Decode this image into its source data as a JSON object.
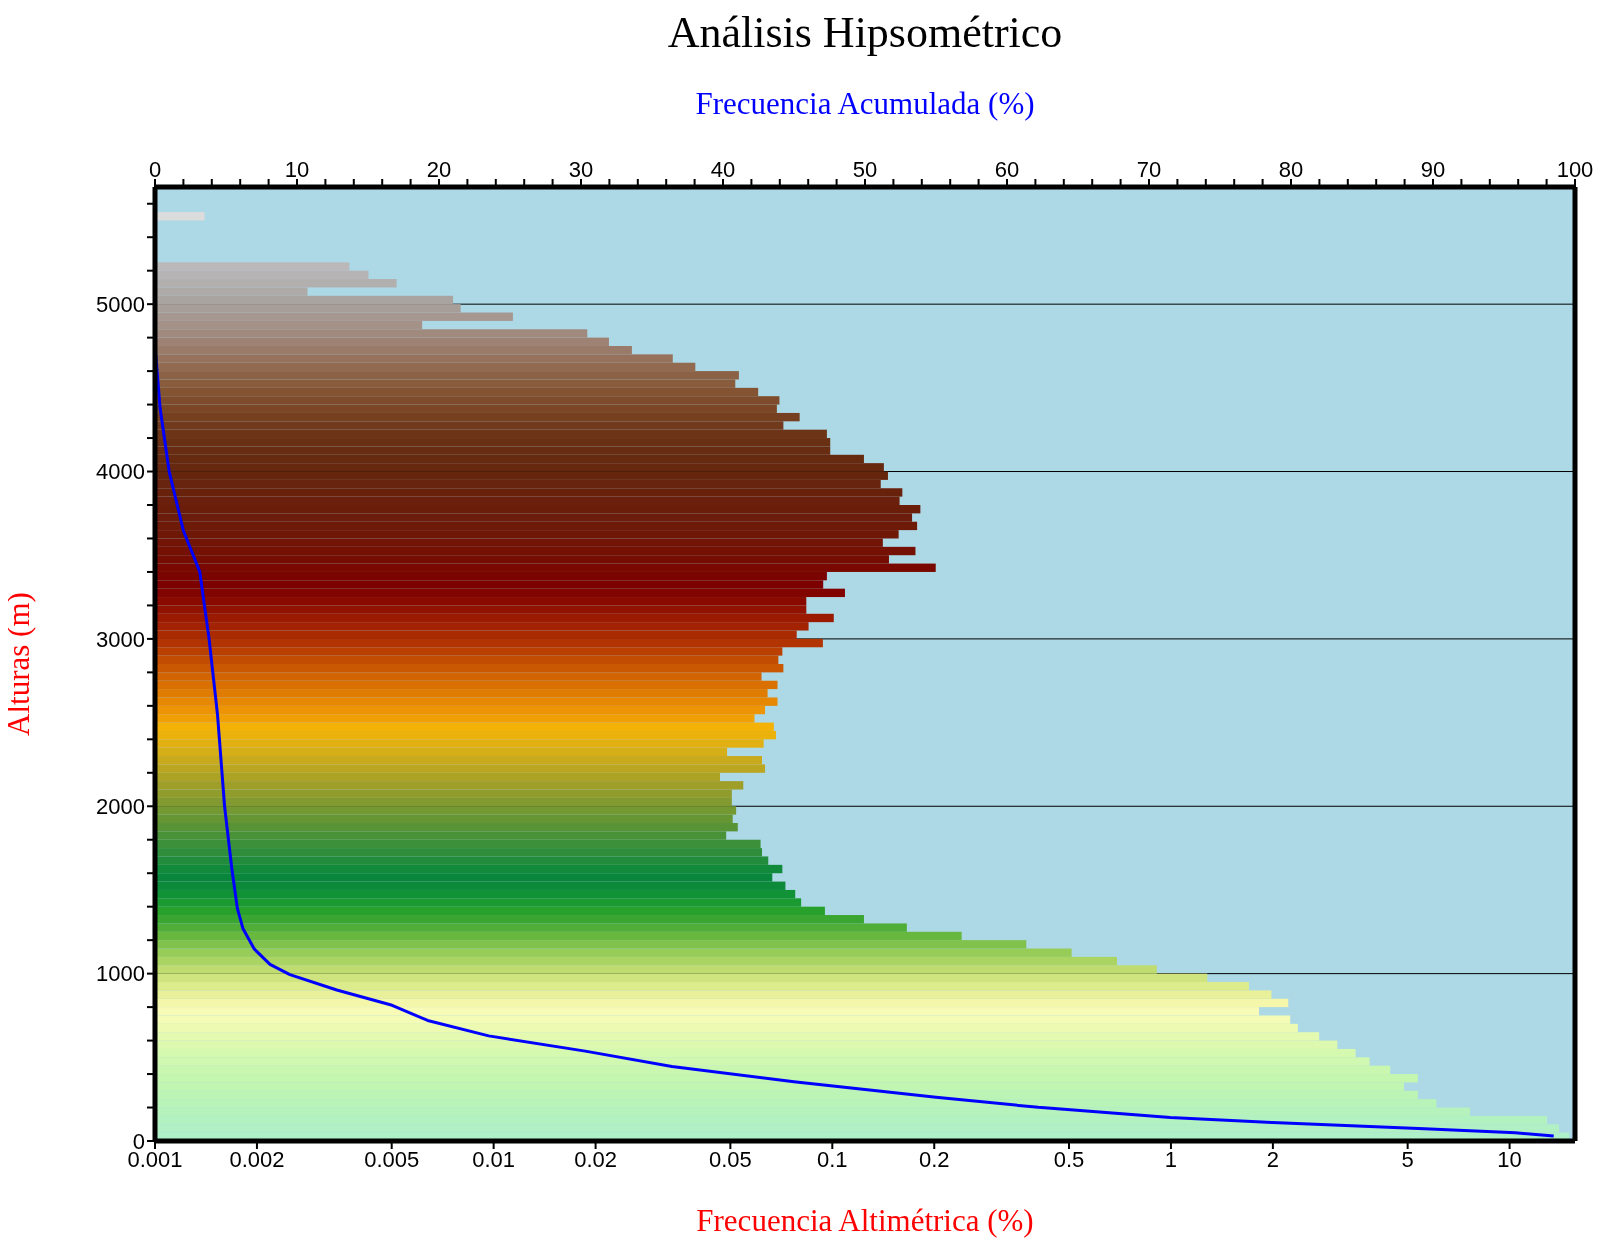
{
  "chart_data": {
    "type": "histogram",
    "orientation": "horizontal",
    "title": "Análisis Hipsométrico",
    "xlabel": "Frecuencia Altimétrica (%)",
    "x2label": "Frecuencia Acumulada (%)",
    "ylabel": "Alturas (m)",
    "log": "x",
    "grid": "y",
    "xlim": [
      0.001,
      15.6
    ],
    "xticks": [
      0.001,
      0.002,
      0.005,
      0.01,
      0.02,
      0.05,
      0.1,
      0.2,
      0.5,
      1,
      2,
      5,
      10
    ],
    "x2lim": [
      0,
      100
    ],
    "x2ticks": [
      0,
      {
        "value": 2,
        "label": null
      },
      {
        "value": 4,
        "label": null
      },
      {
        "value": 6,
        "label": null
      },
      {
        "value": 8,
        "label": null
      },
      10,
      {
        "value": 12,
        "label": null
      },
      {
        "value": 14,
        "label": null
      },
      {
        "value": 16,
        "label": null
      },
      {
        "value": 18,
        "label": null
      },
      20,
      {
        "value": 22,
        "label": null
      },
      {
        "value": 24,
        "label": null
      },
      {
        "value": 26,
        "label": null
      },
      {
        "value": 28,
        "label": null
      },
      30,
      {
        "value": 32,
        "label": null
      },
      {
        "value": 34,
        "label": null
      },
      {
        "value": 36,
        "label": null
      },
      {
        "value": 38,
        "label": null
      },
      40,
      {
        "value": 42,
        "label": null
      },
      {
        "value": 44,
        "label": null
      },
      {
        "value": 46,
        "label": null
      },
      {
        "value": 48,
        "label": null
      },
      50,
      {
        "value": 52,
        "label": null
      },
      {
        "value": 54,
        "label": null
      },
      {
        "value": 56,
        "label": null
      },
      {
        "value": 58,
        "label": null
      },
      60,
      {
        "value": 62,
        "label": null
      },
      {
        "value": 64,
        "label": null
      },
      {
        "value": 66,
        "label": null
      },
      {
        "value": 68,
        "label": null
      },
      70,
      {
        "value": 72,
        "label": null
      },
      {
        "value": 74,
        "label": null
      },
      {
        "value": 76,
        "label": null
      },
      {
        "value": 78,
        "label": null
      },
      80,
      {
        "value": 82,
        "label": null
      },
      {
        "value": 84,
        "label": null
      },
      {
        "value": 86,
        "label": null
      },
      {
        "value": 88,
        "label": null
      },
      90,
      {
        "value": 92,
        "label": null
      },
      {
        "value": 94,
        "label": null
      },
      {
        "value": 96,
        "label": null
      },
      {
        "value": 98,
        "label": null
      },
      100
    ],
    "ylim": [
      0,
      5700
    ],
    "yticks": [
      0,
      {
        "value": 200,
        "label": null
      },
      {
        "value": 400,
        "label": null
      },
      {
        "value": 600,
        "label": null
      },
      {
        "value": 800,
        "label": null
      },
      1000,
      {
        "value": 1200,
        "label": null
      },
      {
        "value": 1400,
        "label": null
      },
      {
        "value": 1600,
        "label": null
      },
      {
        "value": 1800,
        "label": null
      },
      2000,
      {
        "value": 2200,
        "label": null
      },
      {
        "value": 2400,
        "label": null
      },
      {
        "value": 2600,
        "label": null
      },
      {
        "value": 2800,
        "label": null
      },
      3000,
      {
        "value": 3200,
        "label": null
      },
      {
        "value": 3400,
        "label": null
      },
      {
        "value": 3600,
        "label": null
      },
      {
        "value": 3800,
        "label": null
      },
      4000,
      {
        "value": 4200,
        "label": null
      },
      {
        "value": 4400,
        "label": null
      },
      {
        "value": 4600,
        "label": null
      },
      {
        "value": 4800,
        "label": null
      },
      5000,
      {
        "value": 5200,
        "label": null
      },
      {
        "value": 5400,
        "label": null
      },
      {
        "value": 5600,
        "label": null
      }
    ],
    "series": [
      {
        "type": "histogram",
        "bins": [
          0,
          50,
          100,
          150,
          200,
          250,
          300,
          350,
          400,
          450,
          500,
          550,
          600,
          650,
          700,
          750,
          800,
          850,
          900,
          950,
          1000,
          1050,
          1100,
          1150,
          1200,
          1250,
          1300,
          1350,
          1400,
          1450,
          1500,
          1550,
          1600,
          1650,
          1700,
          1750,
          1800,
          1850,
          1900,
          1950,
          2000,
          2050,
          2100,
          2150,
          2200,
          2250,
          2300,
          2350,
          2400,
          2450,
          2500,
          2550,
          2600,
          2650,
          2700,
          2750,
          2800,
          2850,
          2900,
          2950,
          3000,
          3050,
          3100,
          3150,
          3200,
          3250,
          3300,
          3350,
          3400,
          3450,
          3500,
          3550,
          3600,
          3650,
          3700,
          3750,
          3800,
          3850,
          3900,
          3950,
          4000,
          4050,
          4100,
          4150,
          4200,
          4250,
          4300,
          4350,
          4400,
          4450,
          4500,
          4550,
          4600,
          4650,
          4700,
          4750,
          4800,
          4850,
          4900,
          4950,
          5000,
          5050,
          5100,
          5150,
          5200,
          5250,
          5500,
          5550
        ],
        "values": [
          15,
          14,
          12.9,
          7.64,
          6.08,
          5.36,
          4.88,
          5.36,
          4.44,
          3.86,
          3.51,
          3.1,
          2.74,
          2.37,
          2.25,
          1.82,
          2.22,
          1.98,
          1.7,
          1.28,
          0.908,
          0.693,
          0.509,
          0.374,
          0.241,
          0.166,
          0.124,
          0.0951,
          0.0809,
          0.0777,
          0.0727,
          0.0665,
          0.0712,
          0.0647,
          0.062,
          0.0614,
          0.0486,
          0.0526,
          0.0508,
          0.052,
          0.0505,
          0.0505,
          0.0546,
          0.0466,
          0.0633,
          0.062,
          0.0489,
          0.0627,
          0.0682,
          0.0672,
          0.0589,
          0.0633,
          0.0689,
          0.0644,
          0.0689,
          0.0618,
          0.0717,
          0.0693,
          0.0712,
          0.0938,
          0.0785,
          0.0851,
          0.101,
          0.0838,
          0.0838,
          0.109,
          0.094,
          0.0964,
          0.202,
          0.147,
          0.176,
          0.141,
          0.157,
          0.178,
          0.172,
          0.182,
          0.158,
          0.161,
          0.139,
          0.146,
          0.142,
          0.124,
          0.0986,
          0.0986,
          0.0964,
          0.0717,
          0.0801,
          0.0686,
          0.0698,
          0.0604,
          0.0517,
          0.053,
          0.0394,
          0.0338,
          0.0256,
          0.0219,
          0.0189,
          0.00615,
          0.0114,
          0.00799,
          0.00759,
          0.00282,
          0.00517,
          0.00427,
          0.00375,
          null,
          0.0014
        ],
        "colors": [
          "#aef0c8",
          "#b0f0c4",
          "#b2f1c0",
          "#b5f2bc",
          "#b8f3b8",
          "#bcf4b5",
          "#c0f5b2",
          "#c5f6b0",
          "#caf7b0",
          "#d0f8b0",
          "#d6f9b0",
          "#ddf9b0",
          "#e4fab0",
          "#ecfab2",
          "#f3fbb4",
          "#f8fbb6",
          "#f4f7aa",
          "#e8f09a",
          "#dceb8c",
          "#cfe47e",
          "#c0dc70",
          "#acd462",
          "#98cc58",
          "#80c24c",
          "#68b840",
          "#50ae38",
          "#3aa530",
          "#28a02c",
          "#1a9a30",
          "#129236",
          "#0c8a3a",
          "#0a863c",
          "#128a3c",
          "#208c3c",
          "#2e8e3c",
          "#3c903a",
          "#4a9238",
          "#589436",
          "#669634",
          "#749832",
          "#829a30",
          "#909c2c",
          "#9e9e28",
          "#aca224",
          "#baa620",
          "#c8aa1c",
          "#d6ae18",
          "#e2b012",
          "#ecb20c",
          "#f4b206",
          "#f0a004",
          "#ec9404",
          "#e68804",
          "#e07c02",
          "#da7002",
          "#d26402",
          "#ca5802",
          "#c24c02",
          "#ba4002",
          "#b23402",
          "#aa2a02",
          "#a22202",
          "#9a1a02",
          "#921202",
          "#8a0a00",
          "#820400",
          "#7c0000",
          "#7a0400",
          "#780800",
          "#760c02",
          "#741004",
          "#721406",
          "#701808",
          "#6e1a08",
          "#6c1c0a",
          "#6a1e0a",
          "#6a200c",
          "#68220c",
          "#68240e",
          "#66260e",
          "#66280e",
          "#662a10",
          "#682c12",
          "#6a3014",
          "#6e3418",
          "#723a1c",
          "#764020",
          "#7a4626",
          "#7e4c2c",
          "#845432",
          "#885c3c",
          "#8c6246",
          "#926a50",
          "#96725c",
          "#9a7a68",
          "#9e8274",
          "#a08a7e",
          "#a49288",
          "#a69890",
          "#a89e98",
          "#aaa4a0",
          "#aeaaa8",
          "#b2b0ae",
          "#b6b4b4",
          "#bab8b8",
          null,
          "#dcdcdc"
        ]
      },
      {
        "type": "line",
        "axis": "x2",
        "color": "#0000ff",
        "x": [
          4750,
          4378,
          4000,
          3646,
          3402,
          3006,
          2549,
          2000,
          1634,
          1390,
          1268,
          1146,
          1055,
          994,
          902,
          811,
          720,
          628,
          537,
          445,
          354,
          262,
          201,
          140,
          110,
          73,
          49,
          30
        ],
        "values": [
          0,
          0.36,
          1.0,
          2.0,
          3.15,
          3.8,
          4.4,
          4.9,
          5.4,
          5.8,
          6.2,
          7.0,
          8.1,
          9.5,
          12.8,
          16.7,
          19.2,
          23.5,
          30.3,
          36.4,
          45.0,
          55.0,
          62.2,
          71.5,
          78.7,
          89.4,
          95.8,
          98.5
        ]
      }
    ]
  }
}
